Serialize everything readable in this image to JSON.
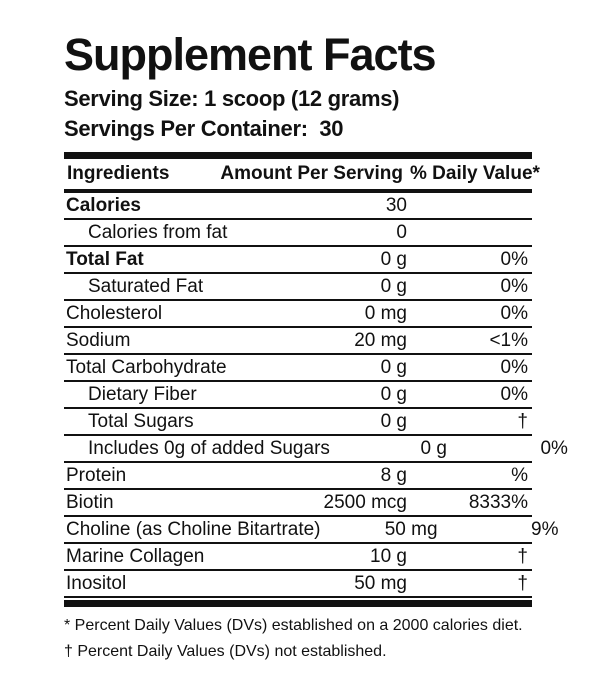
{
  "label": {
    "title": "Supplement Facts",
    "serving": {
      "size": "Serving Size: 1 scoop (12 grams)",
      "per_container": "Servings Per Container:  30"
    },
    "table": {
      "headers": {
        "ingredients": "Ingredients",
        "amount": "Amount Per Serving",
        "daily_value": "% Daily Value*"
      },
      "rows": [
        {
          "name": "Calories",
          "amount": "30",
          "dv": "",
          "bold": true,
          "indent": false
        },
        {
          "name": "Calories from fat",
          "amount": "0",
          "dv": "",
          "bold": false,
          "indent": true
        },
        {
          "name": "Total Fat",
          "amount": "0 g",
          "dv": "0%",
          "bold": true,
          "indent": false
        },
        {
          "name": "Saturated Fat",
          "amount": "0 g",
          "dv": "0%",
          "bold": false,
          "indent": true
        },
        {
          "name": "Cholesterol",
          "amount": "0 mg",
          "dv": "0%",
          "bold": false,
          "indent": false
        },
        {
          "name": "Sodium",
          "amount": "20 mg",
          "dv": "<1%",
          "bold": false,
          "indent": false
        },
        {
          "name": "Total Carbohydrate",
          "amount": "0 g",
          "dv": "0%",
          "bold": false,
          "indent": false
        },
        {
          "name": "Dietary Fiber",
          "amount": "0 g",
          "dv": "0%",
          "bold": false,
          "indent": true
        },
        {
          "name": "Total Sugars",
          "amount": "0 g",
          "dv": "†",
          "bold": false,
          "indent": true
        },
        {
          "name": "Includes 0g of added Sugars",
          "amount": "0 g",
          "dv": "0%",
          "bold": false,
          "indent": true
        },
        {
          "name": "Protein",
          "amount": "8 g",
          "dv": "%",
          "bold": false,
          "indent": false
        },
        {
          "name": "Biotin",
          "amount": "2500 mcg",
          "dv": "8333%",
          "bold": false,
          "indent": false
        },
        {
          "name": "Choline (as Choline Bitartrate)",
          "amount": "50 mg",
          "dv": "9%",
          "bold": false,
          "indent": false
        },
        {
          "name": "Marine Collagen",
          "amount": "10 g",
          "dv": "†",
          "bold": false,
          "indent": false
        },
        {
          "name": "Inositol",
          "amount": "50 mg",
          "dv": "†",
          "bold": false,
          "indent": false
        }
      ]
    },
    "footnotes": [
      "* Percent Daily Values (DVs) established on a 2000 calories diet.",
      "† Percent Daily Values (DVs) not established."
    ],
    "colors": {
      "text": "#111111",
      "background": "#ffffff",
      "rule": "#111111"
    }
  }
}
